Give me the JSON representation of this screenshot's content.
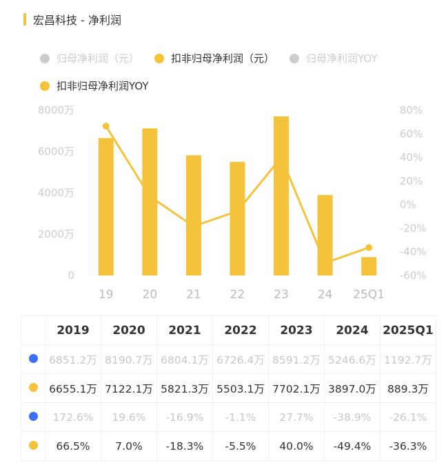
{
  "title": "宏昌科技 - 净利润",
  "legend": [
    {
      "label": "归母净利润（元）",
      "color": "#cccccc",
      "active": false
    },
    {
      "label": "扣非归母净利润（元）",
      "color": "#f5c33b",
      "active": true
    },
    {
      "label": "归母净利润YOY",
      "color": "#cccccc",
      "active": false
    },
    {
      "label": "扣非归母净利润YOY",
      "color": "#f5c33b",
      "active": true
    }
  ],
  "chart_data": {
    "type": "bar",
    "categories": [
      "19",
      "20",
      "21",
      "22",
      "23",
      "24",
      "25Q1"
    ],
    "series": [
      {
        "name": "扣非归母净利润（元）",
        "type": "bar",
        "unit": "万",
        "values": [
          6655.1,
          7122.1,
          5821.3,
          5503.1,
          7702.1,
          3897.0,
          889.3
        ]
      },
      {
        "name": "扣非归母净利润YOY",
        "type": "line",
        "unit": "%",
        "axis": "right",
        "values": [
          66.5,
          7.0,
          -18.3,
          -5.5,
          40.0,
          -49.4,
          -36.3
        ]
      }
    ],
    "ylim": [
      0,
      8000
    ],
    "yticks": [
      "0",
      "2000万",
      "4000万",
      "6000万",
      "8000万"
    ],
    "y2lim": [
      -60,
      80
    ],
    "y2ticks": [
      "-60%",
      "-40%",
      "-20%",
      "0%",
      "20%",
      "40%",
      "60%",
      "80%"
    ],
    "colors": {
      "bar": "#f5c33b",
      "line": "#f5c33b"
    }
  },
  "table": {
    "headers": [
      "2019",
      "2020",
      "2021",
      "2022",
      "2023",
      "2024",
      "2025Q1"
    ],
    "rows": [
      {
        "color": "#3b6ff5",
        "dim": true,
        "values": [
          "6851.2万",
          "8190.7万",
          "6804.1万",
          "6726.4万",
          "8591.2万",
          "5246.6万",
          "1192.7万"
        ]
      },
      {
        "color": "#f5c33b",
        "dim": false,
        "values": [
          "6655.1万",
          "7122.1万",
          "5821.3万",
          "5503.1万",
          "7702.1万",
          "3897.0万",
          "889.3万"
        ]
      },
      {
        "color": "#3b6ff5",
        "dim": true,
        "values": [
          "172.6%",
          "19.6%",
          "-16.9%",
          "-1.1%",
          "27.7%",
          "-38.9%",
          "-26.1%"
        ]
      },
      {
        "color": "#f5c33b",
        "dim": false,
        "values": [
          "66.5%",
          "7.0%",
          "-18.3%",
          "-5.5%",
          "40.0%",
          "-49.4%",
          "-36.3%"
        ]
      }
    ]
  }
}
